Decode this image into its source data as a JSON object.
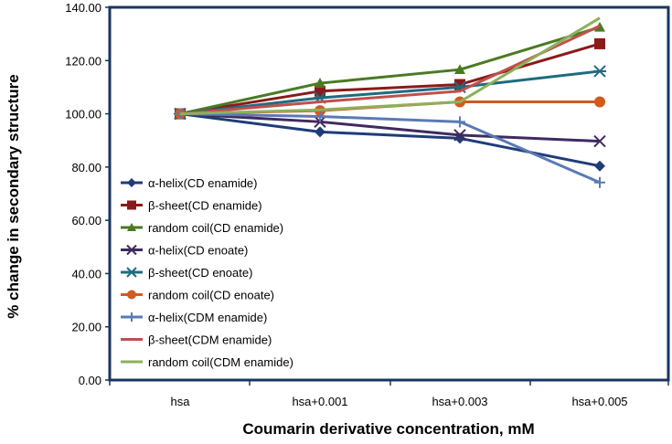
{
  "chart_data": {
    "type": "line",
    "title": "",
    "xlabel": "Coumarin derivative concentration, mM",
    "ylabel": "% change in secondary structure",
    "categories": [
      "hsa",
      "hsa+0.001",
      "hsa+0.003",
      "hsa+0.005"
    ],
    "ylim": [
      0,
      140
    ],
    "yticks": [
      "0.00",
      "20.00",
      "40.00",
      "60.00",
      "80.00",
      "100.00",
      "120.00",
      "140.00"
    ],
    "grid": false,
    "legend_position": "left",
    "series": [
      {
        "name": "α-helix(CD enamide)",
        "values": [
          100,
          93.2,
          90.8,
          80.4
        ],
        "color": "#1f3c7a",
        "marker": "diamond"
      },
      {
        "name": "β-sheet(CD enamide)",
        "values": [
          100,
          108.5,
          111,
          126.3
        ],
        "color": "#8b1a1a",
        "marker": "square"
      },
      {
        "name": "random coil(CD enamide)",
        "values": [
          100,
          111.5,
          116.6,
          132.5
        ],
        "color": "#4a7a23",
        "marker": "triangle"
      },
      {
        "name": "α-helix(CD enoate)",
        "values": [
          100,
          97,
          92,
          89.7
        ],
        "color": "#3f2a5e",
        "marker": "x"
      },
      {
        "name": "β-sheet(CD enoate)",
        "values": [
          100,
          106,
          110,
          116
        ],
        "color": "#1e6b80",
        "marker": "star"
      },
      {
        "name": "random coil(CD enoate)",
        "values": [
          100,
          101.2,
          104.5,
          104.5
        ],
        "color": "#d25a1e",
        "marker": "circle"
      },
      {
        "name": "α-helix(CDM enamide)",
        "values": [
          100,
          99,
          97,
          74.2
        ],
        "color": "#5a7ab5",
        "marker": "plus"
      },
      {
        "name": "β-sheet(CDM enamide)",
        "values": [
          100,
          104.5,
          108.5,
          133
        ],
        "color": "#c0504d",
        "marker": "none"
      },
      {
        "name": "random coil(CDM enamide)",
        "values": [
          100,
          101.5,
          104.5,
          136
        ],
        "color": "#8db05a",
        "marker": "none"
      }
    ]
  }
}
